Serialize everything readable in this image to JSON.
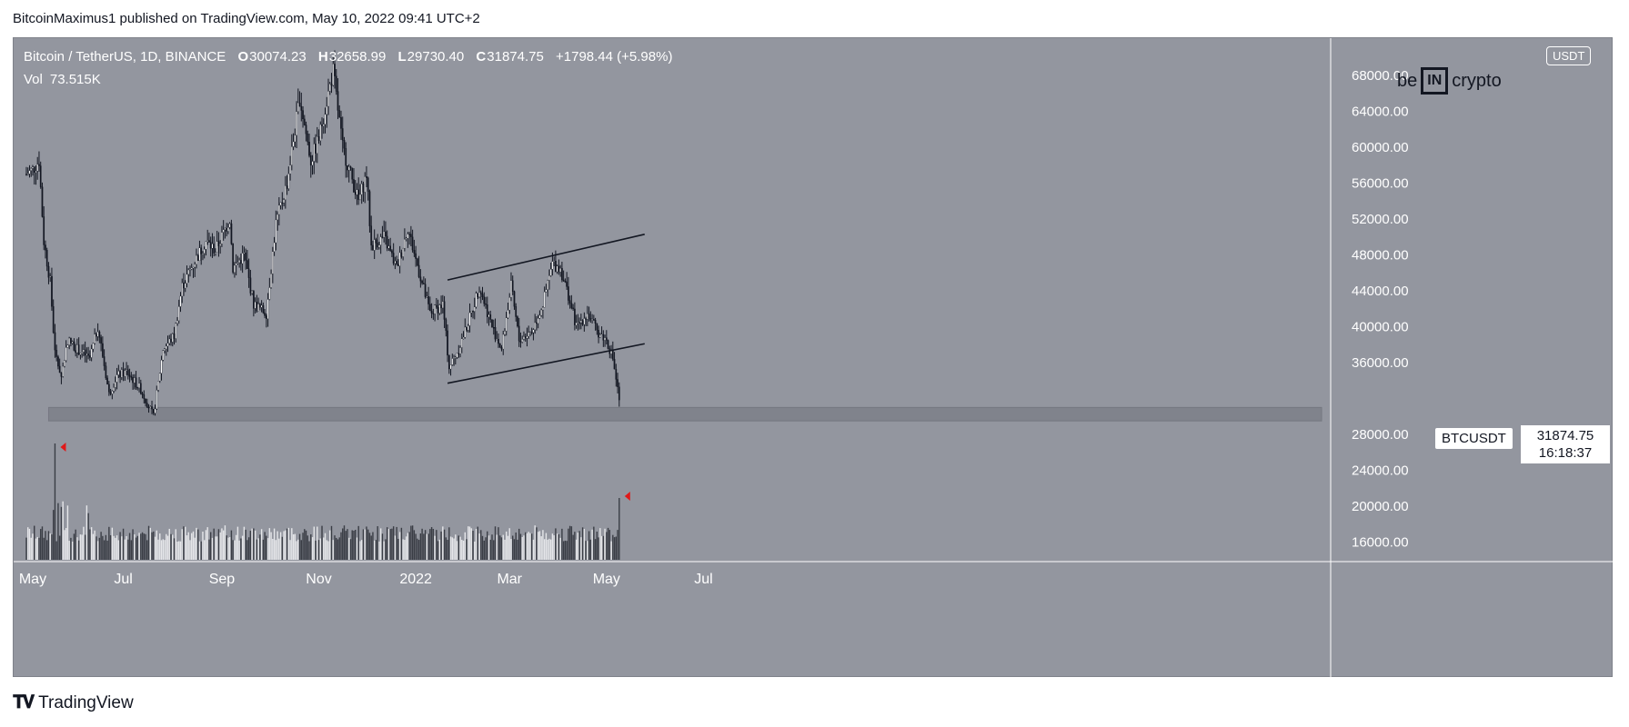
{
  "header": {
    "published": "BitcoinMaximus1 published on TradingView.com, May 10, 2022 09:41 UTC+2"
  },
  "legend": {
    "symbol": "Bitcoin / TetherUS, 1D, BINANCE",
    "o_key": "O",
    "o_val": "30074.23",
    "h_key": "H",
    "h_val": "32658.99",
    "l_key": "L",
    "l_val": "29730.40",
    "c_key": "C",
    "c_val": "31874.75",
    "change": "+1798.44 (+5.98%)",
    "vol_key": "Vol",
    "vol_val": "73.515K"
  },
  "logo": {
    "left": "be",
    "mid": "IN",
    "right": "crypto"
  },
  "currency": "USDT",
  "ticker": "BTCUSDT",
  "last_price": "31874.75",
  "countdown": "16:18:37",
  "footer": {
    "brand": "TradingView"
  },
  "colors": {
    "background": "#93969f",
    "candle_up": "#ffffff",
    "candle_down": "#131722",
    "support": "#7d8089",
    "annotation": "#e01919"
  },
  "chart_data": {
    "type": "candlestick",
    "symbol": "BTCUSDT",
    "interval": "1D",
    "y_axis_ticks": [
      "16000.00",
      "20000.00",
      "24000.00",
      "28000.00",
      "36000.00",
      "40000.00",
      "44000.00",
      "48000.00",
      "52000.00",
      "56000.00",
      "60000.00",
      "64000.00",
      "68000.00"
    ],
    "ylim": [
      12000,
      70000
    ],
    "x_axis_ticks": [
      "May",
      "Jul",
      "Sep",
      "Nov",
      "2022",
      "Mar",
      "May",
      "Jul"
    ],
    "price_path": [
      {
        "date": "2021-05-01",
        "close": 57000
      },
      {
        "date": "2021-05-05",
        "close": 57500
      },
      {
        "date": "2021-05-09",
        "close": 58500
      },
      {
        "date": "2021-05-12",
        "close": 49500
      },
      {
        "date": "2021-05-16",
        "close": 45000
      },
      {
        "date": "2021-05-19",
        "close": 37000
      },
      {
        "date": "2021-05-23",
        "close": 34500
      },
      {
        "date": "2021-05-27",
        "close": 38500
      },
      {
        "date": "2021-06-02",
        "close": 37500
      },
      {
        "date": "2021-06-10",
        "close": 36500
      },
      {
        "date": "2021-06-15",
        "close": 40000
      },
      {
        "date": "2021-06-22",
        "close": 32500
      },
      {
        "date": "2021-06-27",
        "close": 34500
      },
      {
        "date": "2021-07-03",
        "close": 35000
      },
      {
        "date": "2021-07-12",
        "close": 33000
      },
      {
        "date": "2021-07-20",
        "close": 30000
      },
      {
        "date": "2021-07-26",
        "close": 37500
      },
      {
        "date": "2021-08-02",
        "close": 39000
      },
      {
        "date": "2021-08-07",
        "close": 44500
      },
      {
        "date": "2021-08-14",
        "close": 47000
      },
      {
        "date": "2021-08-22",
        "close": 49500
      },
      {
        "date": "2021-08-28",
        "close": 48500
      },
      {
        "date": "2021-09-06",
        "close": 52000
      },
      {
        "date": "2021-09-08",
        "close": 46500
      },
      {
        "date": "2021-09-15",
        "close": 48000
      },
      {
        "date": "2021-09-21",
        "close": 42500
      },
      {
        "date": "2021-09-29",
        "close": 41500
      },
      {
        "date": "2021-10-05",
        "close": 51500
      },
      {
        "date": "2021-10-12",
        "close": 56000
      },
      {
        "date": "2021-10-20",
        "close": 65500
      },
      {
        "date": "2021-10-27",
        "close": 58500
      },
      {
        "date": "2021-11-01",
        "close": 61000
      },
      {
        "date": "2021-11-10",
        "close": 68500
      },
      {
        "date": "2021-11-16",
        "close": 60000
      },
      {
        "date": "2021-11-26",
        "close": 54000
      },
      {
        "date": "2021-12-01",
        "close": 57000
      },
      {
        "date": "2021-12-04",
        "close": 49000
      },
      {
        "date": "2021-12-12",
        "close": 50000
      },
      {
        "date": "2021-12-20",
        "close": 46500
      },
      {
        "date": "2021-12-27",
        "close": 51000
      },
      {
        "date": "2022-01-01",
        "close": 47500
      },
      {
        "date": "2022-01-10",
        "close": 41500
      },
      {
        "date": "2022-01-18",
        "close": 42500
      },
      {
        "date": "2022-01-22",
        "close": 35500
      },
      {
        "date": "2022-01-28",
        "close": 37500
      },
      {
        "date": "2022-02-05",
        "close": 41500
      },
      {
        "date": "2022-02-10",
        "close": 44500
      },
      {
        "date": "2022-02-18",
        "close": 40000
      },
      {
        "date": "2022-02-24",
        "close": 37500
      },
      {
        "date": "2022-03-02",
        "close": 44500
      },
      {
        "date": "2022-03-07",
        "close": 38500
      },
      {
        "date": "2022-03-15",
        "close": 39500
      },
      {
        "date": "2022-03-22",
        "close": 42500
      },
      {
        "date": "2022-03-28",
        "close": 47000
      },
      {
        "date": "2022-04-02",
        "close": 46500
      },
      {
        "date": "2022-04-07",
        "close": 43500
      },
      {
        "date": "2022-04-12",
        "close": 40000
      },
      {
        "date": "2022-04-19",
        "close": 41500
      },
      {
        "date": "2022-04-25",
        "close": 39500
      },
      {
        "date": "2022-05-01",
        "close": 38500
      },
      {
        "date": "2022-05-05",
        "close": 36500
      },
      {
        "date": "2022-05-09",
        "close": 31874.75
      }
    ],
    "support_zone": [
      29500,
      31000
    ],
    "channel": {
      "upper": [
        {
          "date": "2022-01-21",
          "price": 45200
        },
        {
          "date": "2022-05-25",
          "price": 50300
        }
      ],
      "lower": [
        {
          "date": "2022-01-21",
          "price": 33700
        },
        {
          "date": "2022-05-25",
          "price": 38100
        }
      ]
    },
    "volume_spikes": [
      {
        "date": "2021-05-19"
      },
      {
        "date": "2022-05-09"
      }
    ]
  }
}
